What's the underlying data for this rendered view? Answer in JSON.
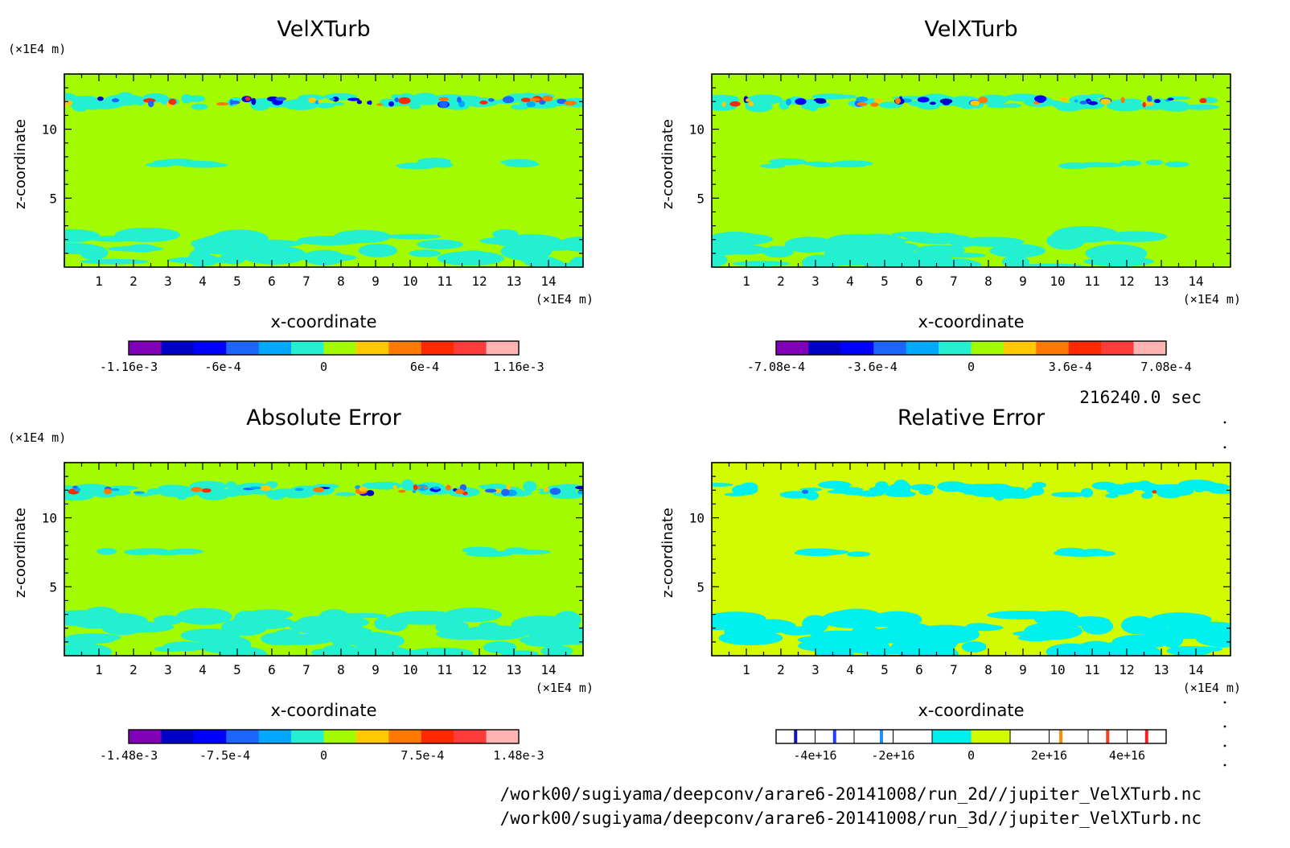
{
  "time_label": "216240.0 sec",
  "footer": {
    "line1": "/work00/sugiyama/deepconv/arare6-20141008/run_2d//jupiter_VelXTurb.nc",
    "line2": "/work00/sugiyama/deepconv/arare6-20141008/run_3d//jupiter_VelXTurb.nc"
  },
  "colors": {
    "background_field": "#a3fb00",
    "relative_background": "#d2fb00",
    "anomaly_cyan": "#22f0d0",
    "relative_cyan": "#00f0f0"
  },
  "chart_data": [
    {
      "type": "heatmap",
      "title": "VelXTurb",
      "xlabel": "x-coordinate",
      "ylabel": "z-coordinate",
      "x_unit": "(×1E4 m)",
      "y_unit": "(×1E4 m)",
      "xlim": [
        0,
        15
      ],
      "ylim": [
        0,
        14
      ],
      "x_ticks": [
        1,
        2,
        3,
        4,
        5,
        6,
        7,
        8,
        9,
        10,
        11,
        12,
        13,
        14
      ],
      "y_ticks": [
        5,
        10
      ],
      "colorbar": {
        "colors": [
          "#7f00b7",
          "#0000c8",
          "#0000ff",
          "#1e64ff",
          "#00a8ff",
          "#22f0d0",
          "#a3fb00",
          "#ffc800",
          "#ff7800",
          "#ff2800",
          "#ff3c3c",
          "#ffb4b4"
        ],
        "labels": [
          "-1.16e-3",
          "-6e-4",
          "0",
          "6e-4",
          "1.16e-3"
        ],
        "label_values": [
          -0.00116,
          -0.0006,
          0,
          0.0006,
          0.00116
        ],
        "range": [
          -0.00116,
          0.00116
        ]
      }
    },
    {
      "type": "heatmap",
      "title": "VelXTurb",
      "xlabel": "x-coordinate",
      "ylabel": "z-coordinate",
      "x_unit": "(×1E4 m)",
      "y_unit": "(×1E4 m)",
      "xlim": [
        0,
        15
      ],
      "ylim": [
        0,
        14
      ],
      "x_ticks": [
        1,
        2,
        3,
        4,
        5,
        6,
        7,
        8,
        9,
        10,
        11,
        12,
        13,
        14
      ],
      "y_ticks": [
        5,
        10
      ],
      "colorbar": {
        "colors": [
          "#7f00b7",
          "#0000c8",
          "#0000ff",
          "#1e64ff",
          "#00a8ff",
          "#22f0d0",
          "#a3fb00",
          "#ffc800",
          "#ff7800",
          "#ff2800",
          "#ff3c3c",
          "#ffb4b4"
        ],
        "labels": [
          "-7.08e-4",
          "-3.6e-4",
          "0",
          "3.6e-4",
          "7.08e-4"
        ],
        "label_values": [
          -0.000708,
          -0.00036,
          0,
          0.00036,
          0.000708
        ],
        "range": [
          -0.000708,
          0.000708
        ]
      }
    },
    {
      "type": "heatmap",
      "title": "Absolute Error",
      "xlabel": "x-coordinate",
      "ylabel": "z-coordinate",
      "x_unit": "(×1E4 m)",
      "y_unit": "(×1E4 m)",
      "xlim": [
        0,
        15
      ],
      "ylim": [
        0,
        14
      ],
      "x_ticks": [
        1,
        2,
        3,
        4,
        5,
        6,
        7,
        8,
        9,
        10,
        11,
        12,
        13,
        14
      ],
      "y_ticks": [
        5,
        10
      ],
      "colorbar": {
        "colors": [
          "#7f00b7",
          "#0000c8",
          "#0000ff",
          "#1e64ff",
          "#00a8ff",
          "#22f0d0",
          "#a3fb00",
          "#ffc800",
          "#ff7800",
          "#ff2800",
          "#ff3c3c",
          "#ffb4b4"
        ],
        "labels": [
          "-1.48e-3",
          "-7.5e-4",
          "0",
          "7.5e-4",
          "1.48e-3"
        ],
        "label_values": [
          -0.00148,
          -0.00075,
          0,
          0.00075,
          0.00148
        ],
        "range": [
          -0.00148,
          0.00148
        ]
      }
    },
    {
      "type": "heatmap",
      "title": "Relative Error",
      "xlabel": "x-coordinate",
      "ylabel": "z-coordinate",
      "x_unit": "(×1E4 m)",
      "y_unit": "(×1E4 m)",
      "xlim": [
        0,
        15
      ],
      "ylim": [
        0,
        14
      ],
      "x_ticks": [
        1,
        2,
        3,
        4,
        5,
        6,
        7,
        8,
        9,
        10,
        11,
        12,
        13,
        14
      ],
      "y_ticks": [
        5,
        10
      ],
      "colorbar": {
        "colors": [
          "#ffffff",
          "#1010c8",
          "#ffffff",
          "#2040ff",
          "#ffffff",
          "#1e90ff",
          "#ffffff",
          "#00f0f0",
          "#d2fb00",
          "#ffffff",
          "#ff8c00",
          "#ffffff",
          "#ff3c1e",
          "#ffffff",
          "#ff1e1e",
          "#ffffff"
        ],
        "labels": [
          "-4e+16",
          "-2e+16",
          "0",
          "2e+16",
          "4e+16"
        ],
        "label_values": [
          -4e+16,
          -2e+16,
          0,
          2e+16,
          4e+16
        ],
        "range": [
          -5e+16,
          5e+16
        ]
      }
    }
  ]
}
